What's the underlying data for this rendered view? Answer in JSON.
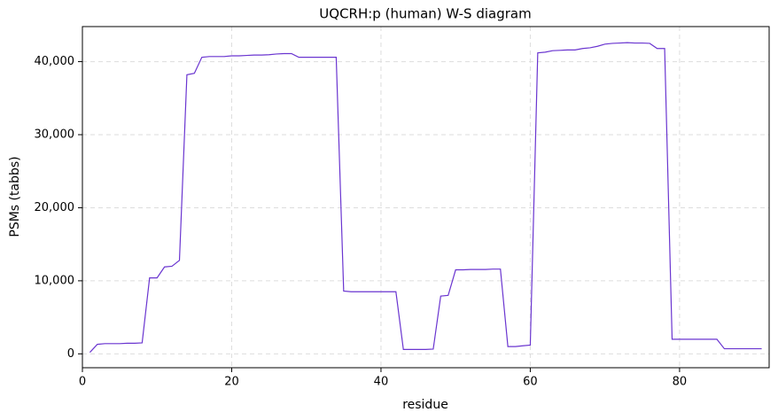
{
  "chart_data": {
    "type": "line",
    "title": "UQCRH:p (human) W-S diagram",
    "xlabel": "residue",
    "ylabel": "PSMs (tabbs)",
    "x": [
      1,
      2,
      3,
      4,
      5,
      6,
      7,
      8,
      9,
      10,
      11,
      12,
      13,
      14,
      15,
      16,
      17,
      18,
      19,
      20,
      21,
      22,
      23,
      24,
      25,
      26,
      27,
      28,
      29,
      30,
      31,
      32,
      33,
      34,
      35,
      36,
      37,
      38,
      39,
      40,
      41,
      42,
      43,
      44,
      45,
      46,
      47,
      48,
      49,
      50,
      51,
      52,
      53,
      54,
      55,
      56,
      57,
      58,
      59,
      60,
      61,
      62,
      63,
      64,
      65,
      66,
      67,
      68,
      69,
      70,
      71,
      72,
      73,
      74,
      75,
      76,
      77,
      78,
      79,
      80,
      81,
      82,
      83,
      84,
      85,
      86,
      87,
      88,
      89,
      90,
      91
    ],
    "values": [
      200,
      1300,
      1400,
      1400,
      1400,
      1450,
      1450,
      1500,
      10400,
      10400,
      11900,
      12000,
      12800,
      38200,
      38400,
      40600,
      40700,
      40700,
      40700,
      40800,
      40800,
      40850,
      40900,
      40900,
      40950,
      41050,
      41100,
      41100,
      40600,
      40600,
      40600,
      40600,
      40600,
      40600,
      8600,
      8500,
      8500,
      8500,
      8500,
      8500,
      8500,
      8500,
      600,
      600,
      600,
      600,
      650,
      7900,
      8000,
      11500,
      11500,
      11550,
      11550,
      11550,
      11600,
      11600,
      1000,
      1000,
      1100,
      1200,
      41200,
      41300,
      41500,
      41550,
      41600,
      41600,
      41800,
      41900,
      42100,
      42400,
      42500,
      42550,
      42600,
      42550,
      42550,
      42500,
      41800,
      41800,
      2000,
      2000,
      2000,
      2000,
      2000,
      2000,
      2000,
      700,
      700,
      700,
      700,
      700,
      700
    ],
    "color": "#6a35d0",
    "xlim": [
      0,
      92
    ],
    "ylim": [
      -1900,
      44800
    ],
    "xticks": [
      0,
      20,
      40,
      60,
      80
    ],
    "yticks": [
      0,
      {
        "value": 10000,
        "label": "10,000"
      },
      {
        "value": 20000,
        "label": "20,000"
      },
      {
        "value": 30000,
        "label": "30,000"
      },
      {
        "value": 40000,
        "label": "40,000"
      }
    ],
    "grid": true
  }
}
